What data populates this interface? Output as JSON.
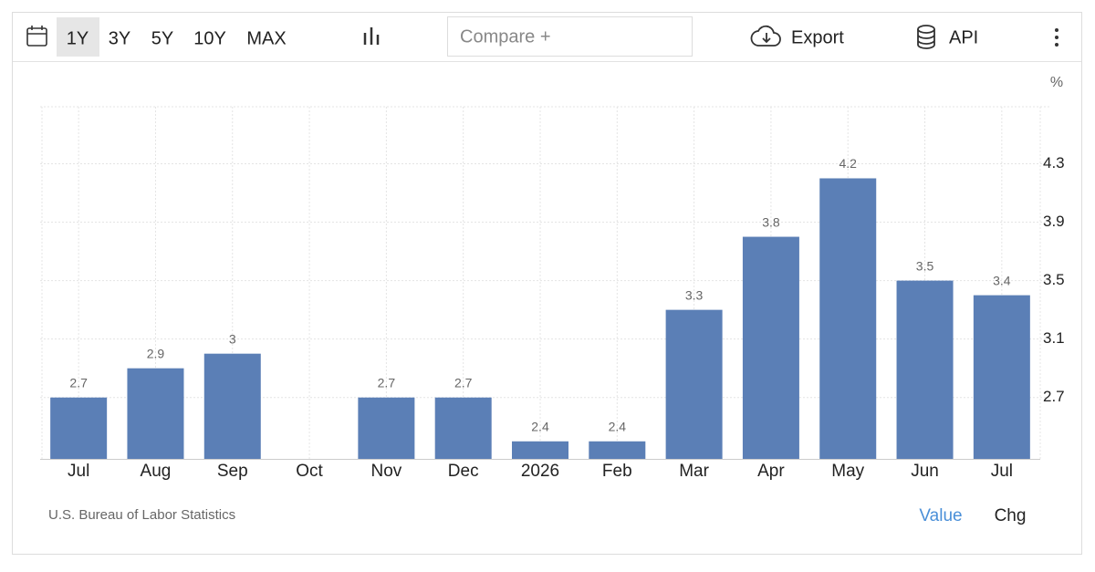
{
  "toolbar": {
    "ranges": [
      "1Y",
      "3Y",
      "5Y",
      "10Y",
      "MAX"
    ],
    "compare": "Compare +",
    "export": "Export",
    "api": "API"
  },
  "chart_data": {
    "type": "bar",
    "unit": "%",
    "categories": [
      "Jul",
      "Aug",
      "Sep",
      "Oct",
      "Nov",
      "Dec",
      "2026",
      "Feb",
      "Mar",
      "Apr",
      "May",
      "Jun",
      "Jul"
    ],
    "values": [
      2.7,
      2.9,
      3,
      null,
      2.7,
      2.7,
      2.4,
      2.4,
      3.3,
      3.8,
      4.2,
      3.5,
      3.4
    ],
    "color": "#5b7fb6",
    "ylim": [
      2.28,
      4.69
    ],
    "yticks": [
      2.7,
      3.1,
      3.5,
      3.9,
      4.3
    ],
    "grid": true
  },
  "footer": {
    "source": "U.S. Bureau of Labor Statistics",
    "value": "Value",
    "chg": "Chg"
  }
}
